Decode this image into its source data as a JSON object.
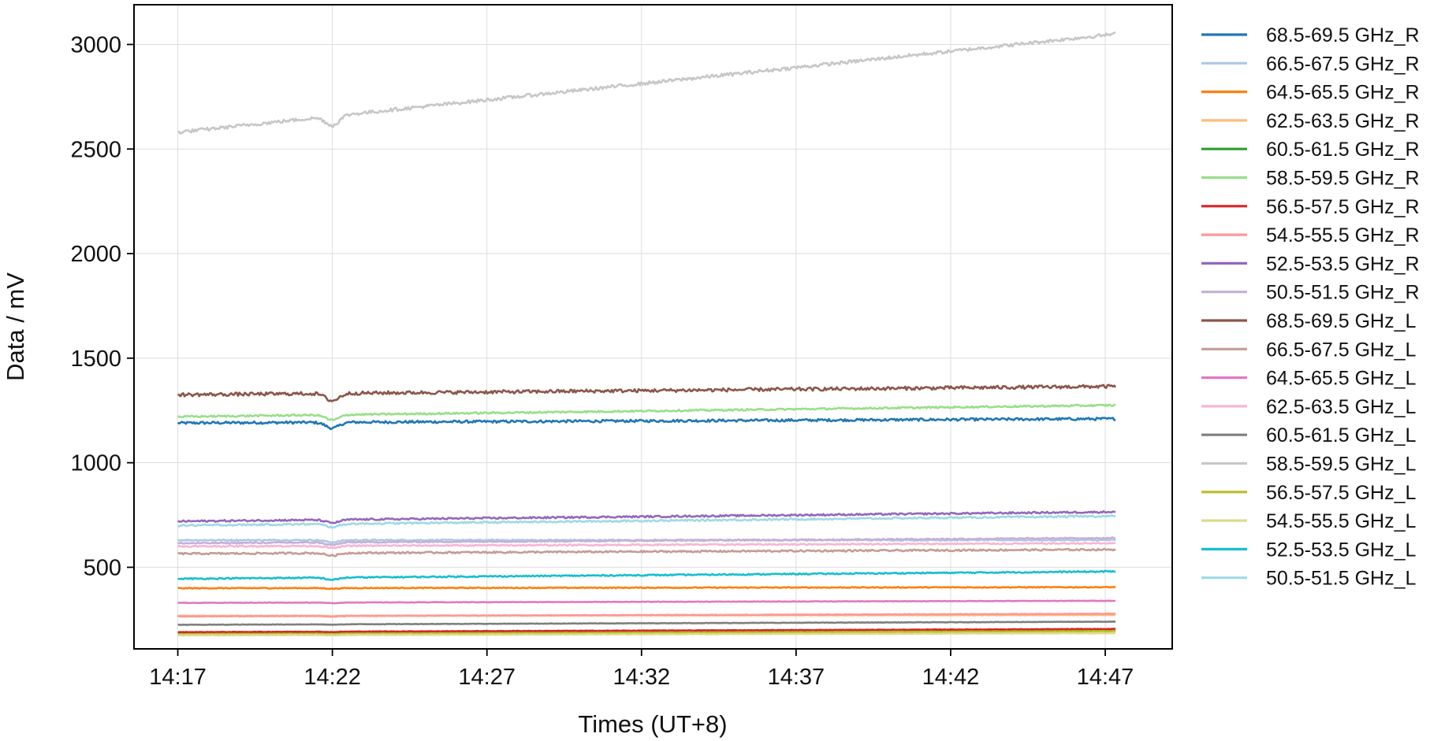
{
  "chart_data": {
    "type": "line",
    "xlabel": "Times (UT+8)",
    "ylabel": "Data / mV",
    "xlim": [
      "14:15:35",
      "14:49:10"
    ],
    "ylim": [
      110,
      3190
    ],
    "x_ticks": [
      "14:17",
      "14:22",
      "14:27",
      "14:32",
      "14:37",
      "14:42",
      "14:47"
    ],
    "y_ticks": [
      500,
      1000,
      1500,
      2000,
      2500,
      3000
    ],
    "grid": true,
    "legend_position": "outside-right",
    "x_start": "14:17:00",
    "x_end": "14:47:20",
    "dip_time": "14:22:00",
    "series": [
      {
        "name": "68.5-69.5 GHz_R",
        "color": "#1f77b4",
        "start": 1190,
        "end": 1210,
        "dip": 28,
        "noise": 6
      },
      {
        "name": "66.5-67.5 GHz_R",
        "color": "#aec7e8",
        "start": 630,
        "end": 630,
        "dip": 10,
        "noise": 3
      },
      {
        "name": "64.5-65.5 GHz_R",
        "color": "#ff7f0e",
        "start": 400,
        "end": 405,
        "dip": 3,
        "noise": 2
      },
      {
        "name": "62.5-63.5 GHz_R",
        "color": "#ffbb78",
        "start": 268,
        "end": 272,
        "dip": 2,
        "noise": 1
      },
      {
        "name": "60.5-61.5 GHz_R",
        "color": "#2ca02c",
        "start": 185,
        "end": 200,
        "dip": 2,
        "noise": 1
      },
      {
        "name": "58.5-59.5 GHz_R",
        "color": "#98df8a",
        "start": 1220,
        "end": 1275,
        "dip": 25,
        "noise": 4
      },
      {
        "name": "56.5-57.5 GHz_R",
        "color": "#d62728",
        "start": 190,
        "end": 205,
        "dip": 2,
        "noise": 1
      },
      {
        "name": "54.5-55.5 GHz_R",
        "color": "#ff9896",
        "start": 265,
        "end": 278,
        "dip": 3,
        "noise": 1
      },
      {
        "name": "52.5-53.5 GHz_R",
        "color": "#9467bd",
        "start": 720,
        "end": 765,
        "dip": 15,
        "noise": 4
      },
      {
        "name": "50.5-51.5 GHz_R",
        "color": "#c5b0d5",
        "start": 615,
        "end": 640,
        "dip": 12,
        "noise": 3
      },
      {
        "name": "68.5-69.5 GHz_L",
        "color": "#8c564b",
        "start": 1325,
        "end": 1365,
        "dip": 35,
        "noise": 8
      },
      {
        "name": "66.5-67.5 GHz_L",
        "color": "#c49c94",
        "start": 565,
        "end": 585,
        "dip": 12,
        "noise": 4
      },
      {
        "name": "64.5-65.5 GHz_L",
        "color": "#e377c2",
        "start": 330,
        "end": 340,
        "dip": 3,
        "noise": 1
      },
      {
        "name": "62.5-63.5 GHz_L",
        "color": "#f7b6d2",
        "start": 600,
        "end": 615,
        "dip": 10,
        "noise": 3
      },
      {
        "name": "60.5-61.5 GHz_L",
        "color": "#7f7f7f",
        "start": 225,
        "end": 240,
        "dip": 2,
        "noise": 1
      },
      {
        "name": "58.5-59.5 GHz_L",
        "color": "#c7c7c7",
        "start": 2580,
        "end": 3050,
        "dip": 45,
        "noise": 8
      },
      {
        "name": "56.5-57.5 GHz_L",
        "color": "#bcbd22",
        "start": 180,
        "end": 195,
        "dip": 2,
        "noise": 1
      },
      {
        "name": "54.5-55.5 GHz_L",
        "color": "#dbdb8d",
        "start": 175,
        "end": 185,
        "dip": 2,
        "noise": 1
      },
      {
        "name": "52.5-53.5 GHz_L",
        "color": "#17becf",
        "start": 445,
        "end": 480,
        "dip": 10,
        "noise": 3
      },
      {
        "name": "50.5-51.5 GHz_L",
        "color": "#9edae5",
        "start": 700,
        "end": 745,
        "dip": 15,
        "noise": 4
      }
    ]
  }
}
